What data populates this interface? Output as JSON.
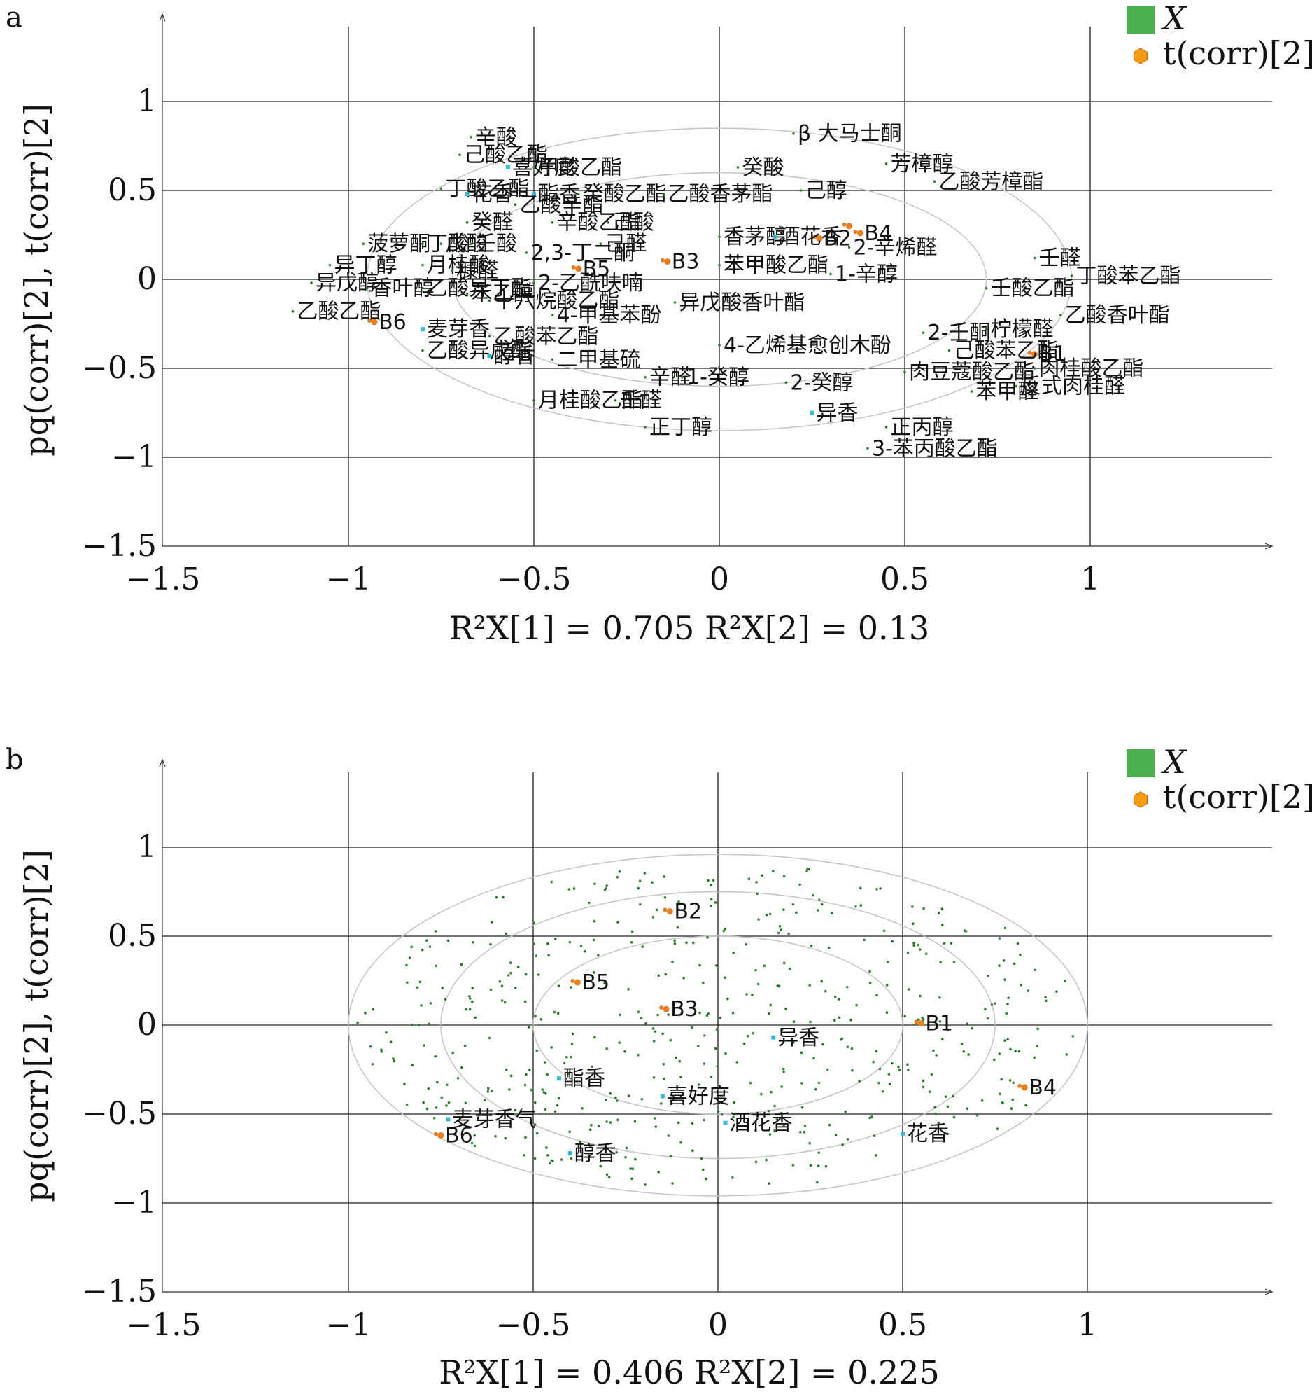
{
  "panels": [
    {
      "label": "a",
      "legend": [
        {
          "name": "X",
          "color": "#4caf50",
          "shape": "square"
        },
        {
          "name": "t(corr)[2]",
          "color": "#f39c12",
          "shape": "hexagon"
        }
      ],
      "ylabel": "pq(corr)[2], t(corr)[2]",
      "xlabel": "R2X[1] = 0.705 R2X[2] = 0.13"
    },
    {
      "label": "b",
      "legend": [
        {
          "name": "X",
          "color": "#4caf50",
          "shape": "square"
        },
        {
          "name": "t(corr)[2]",
          "color": "#f39c12",
          "shape": "hexagon"
        }
      ],
      "ylabel": "pq(corr)[2], t(corr)[2]",
      "xlabel": "R2X[1] = 0.406 R2X[2] = 0.225"
    }
  ],
  "chart_data": [
    {
      "type": "scatter",
      "panel": "a",
      "xlim": [
        -1.5,
        1.5
      ],
      "ylim": [
        -1.5,
        1.5
      ],
      "xticks": [
        "-1.5",
        "-1",
        "-0.5",
        "0",
        "0.5",
        "1"
      ],
      "yticks": [
        "1",
        "0.5",
        "0",
        "-0.5",
        "-1",
        "-1.5"
      ],
      "xlabel": "R2X[1] = 0.705 R2X[2] = 0.13",
      "ylabel": "pq(corr)[2], t(corr)[2]",
      "grid": true,
      "legend_position": "top-right",
      "ellipses": [
        [
          0.95,
          0.85
        ],
        [
          0.72,
          0.6
        ]
      ],
      "series": [
        {
          "name": "t(corr)[2]",
          "color": "#e67e22",
          "points": [
            {
              "label": "B3",
              "x": -0.14,
              "y": 0.1
            },
            {
              "label": "B5",
              "x": -0.38,
              "y": 0.06
            },
            {
              "label": "B4",
              "x": 0.38,
              "y": 0.26
            },
            {
              "label": "",
              "x": 0.35,
              "y": 0.3
            },
            {
              "label": "B2",
              "x": 0.27,
              "y": 0.23
            },
            {
              "label": "B6",
              "x": -0.93,
              "y": -0.24
            },
            {
              "label": "B1",
              "x": 0.85,
              "y": -0.42
            }
          ]
        },
        {
          "name": "X",
          "color": "#2e7d32",
          "points": [
            {
              "label": "辛酸",
              "x": -0.67,
              "y": 0.8
            },
            {
              "label": "己酸乙酯",
              "x": -0.7,
              "y": 0.7
            },
            {
              "label": "喜好度",
              "x": -0.57,
              "y": 0.63
            },
            {
              "label": "甲酸乙酯",
              "x": -0.5,
              "y": 0.63
            },
            {
              "label": "癸酸",
              "x": 0.05,
              "y": 0.63
            },
            {
              "label": "丁酸乙酯",
              "x": -0.75,
              "y": 0.51
            },
            {
              "label": "花香",
              "x": -0.68,
              "y": 0.48
            },
            {
              "label": "酯香",
              "x": -0.5,
              "y": 0.48
            },
            {
              "label": "癸酸乙酯",
              "x": -0.38,
              "y": 0.48
            },
            {
              "label": "乙酸香茅酯",
              "x": -0.15,
              "y": 0.48
            },
            {
              "label": "己醇",
              "x": 0.22,
              "y": 0.5
            },
            {
              "label": "乙酸辛酯",
              "x": -0.55,
              "y": 0.42
            },
            {
              "label": "癸醛",
              "x": -0.68,
              "y": 0.32
            },
            {
              "label": "辛酸乙酯",
              "x": -0.45,
              "y": 0.32
            },
            {
              "label": "己酸",
              "x": -0.3,
              "y": 0.32
            },
            {
              "label": "香茅醇",
              "x": 0.0,
              "y": 0.24
            },
            {
              "label": "酒花香",
              "x": 0.15,
              "y": 0.24
            },
            {
              "label": "β 大马士酮",
              "x": 0.2,
              "y": 0.82
            },
            {
              "label": "芳樟醇",
              "x": 0.45,
              "y": 0.65
            },
            {
              "label": "乙酸芳樟酯",
              "x": 0.58,
              "y": 0.55
            },
            {
              "label": "2-辛烯醛",
              "x": 0.35,
              "y": 0.18
            },
            {
              "label": "1-辛醇",
              "x": 0.3,
              "y": 0.03
            },
            {
              "label": "苯甲酸乙酯",
              "x": 0.0,
              "y": 0.08
            },
            {
              "label": "己醛",
              "x": -0.32,
              "y": 0.2
            },
            {
              "label": "菠萝酮",
              "x": -0.96,
              "y": 0.2
            },
            {
              "label": "丁酸",
              "x": -0.8,
              "y": 0.2
            },
            {
              "label": "戊酸",
              "x": -0.75,
              "y": 0.2
            },
            {
              "label": "壬酸",
              "x": -0.67,
              "y": 0.2
            },
            {
              "label": "2,3-丁二酮",
              "x": -0.52,
              "y": 0.15
            },
            {
              "label": "异丁醇",
              "x": -1.05,
              "y": 0.08
            },
            {
              "label": "月桂酸",
              "x": -0.8,
              "y": 0.08
            },
            {
              "label": "糠醛",
              "x": -0.72,
              "y": 0.05
            },
            {
              "label": "异戊醇",
              "x": -1.1,
              "y": -0.02
            },
            {
              "label": "香叶醇",
              "x": -0.95,
              "y": -0.05
            },
            {
              "label": "乙酸异丁酯",
              "x": -0.8,
              "y": -0.05
            },
            {
              "label": "苯乙醇",
              "x": -0.68,
              "y": -0.08
            },
            {
              "label": "2-乙酰呋喃",
              "x": -0.5,
              "y": -0.02
            },
            {
              "label": "十六烷酸乙酯",
              "x": -0.62,
              "y": -0.12
            },
            {
              "label": "乙酸乙酯",
              "x": -1.15,
              "y": -0.18
            },
            {
              "label": "麦芽香",
              "x": -0.8,
              "y": -0.28
            },
            {
              "label": "乙酸苯乙酯",
              "x": -0.62,
              "y": -0.32
            },
            {
              "label": "乙酸异戊酯",
              "x": -0.8,
              "y": -0.4
            },
            {
              "label": "醇香",
              "x": -0.62,
              "y": -0.43
            },
            {
              "label": "二甲基硫",
              "x": -0.45,
              "y": -0.45
            },
            {
              "label": "异戊酸香叶酯",
              "x": -0.12,
              "y": -0.13
            },
            {
              "label": "4-甲基苯酚",
              "x": -0.45,
              "y": -0.2
            },
            {
              "label": "4-乙烯基愈创木酚",
              "x": 0.0,
              "y": -0.37
            },
            {
              "label": "辛醛",
              "x": -0.2,
              "y": -0.55
            },
            {
              "label": "1-癸醇",
              "x": -0.1,
              "y": -0.55
            },
            {
              "label": "2-癸醇",
              "x": 0.18,
              "y": -0.58
            },
            {
              "label": "月桂酸乙酯",
              "x": -0.5,
              "y": -0.68
            },
            {
              "label": "壬醛",
              "x": -0.28,
              "y": -0.68
            },
            {
              "label": "正丁醇",
              "x": -0.2,
              "y": -0.83
            },
            {
              "label": "异香",
              "x": 0.25,
              "y": -0.75
            },
            {
              "label": "正丙醇",
              "x": 0.45,
              "y": -0.83
            },
            {
              "label": "3-苯丙酸乙酯",
              "x": 0.4,
              "y": -0.95
            },
            {
              "label": "壬醛",
              "x": 0.85,
              "y": 0.12
            },
            {
              "label": "丁酸苯乙酯",
              "x": 0.95,
              "y": 0.02
            },
            {
              "label": "壬酸乙酯",
              "x": 0.72,
              "y": -0.05
            },
            {
              "label": "乙酸香叶酯",
              "x": 0.92,
              "y": -0.2
            },
            {
              "label": "2-壬酮",
              "x": 0.55,
              "y": -0.3
            },
            {
              "label": "柠檬醛",
              "x": 0.72,
              "y": -0.28
            },
            {
              "label": "己酸苯乙酯",
              "x": 0.62,
              "y": -0.4
            },
            {
              "label": "肉豆蔻酸乙酯",
              "x": 0.5,
              "y": -0.52
            },
            {
              "label": "肉桂酸乙酯",
              "x": 0.85,
              "y": -0.5
            },
            {
              "label": "苯甲醛",
              "x": 0.68,
              "y": -0.63
            },
            {
              "label": "反式肉桂醛",
              "x": 0.8,
              "y": -0.6
            }
          ]
        }
      ]
    },
    {
      "type": "scatter",
      "panel": "b",
      "xlim": [
        -1.5,
        1.5
      ],
      "ylim": [
        -1.5,
        1.5
      ],
      "xticks": [
        "-1.5",
        "-1",
        "-0.5",
        "0",
        "0.5",
        "1"
      ],
      "yticks": [
        "1",
        "0.5",
        "0",
        "-0.5",
        "-1",
        "-1.5"
      ],
      "xlabel": "R2X[1] = 0.406 R2X[2] = 0.225",
      "ylabel": "pq(corr)[2], t(corr)[2]",
      "grid": true,
      "legend_position": "top-right",
      "ellipses": [
        [
          1.0,
          0.96
        ],
        [
          0.75,
          0.75
        ],
        [
          0.5,
          0.5
        ]
      ],
      "series": [
        {
          "name": "t(corr)[2]",
          "color": "#e67e22",
          "points": [
            {
              "label": "B2",
              "x": -0.13,
              "y": 0.64
            },
            {
              "label": "B5",
              "x": -0.38,
              "y": 0.24
            },
            {
              "label": "B3",
              "x": -0.14,
              "y": 0.09
            },
            {
              "label": "B1",
              "x": 0.55,
              "y": 0.01
            },
            {
              "label": "B4",
              "x": 0.83,
              "y": -0.35
            },
            {
              "label": "B6",
              "x": -0.75,
              "y": -0.62
            }
          ]
        },
        {
          "name": "X",
          "color": "#2e7d32",
          "points": [
            {
              "label": "异香",
              "x": 0.15,
              "y": -0.07
            },
            {
              "label": "酯香",
              "x": -0.43,
              "y": -0.3
            },
            {
              "label": "喜好度",
              "x": -0.15,
              "y": -0.4
            },
            {
              "label": "酒花香",
              "x": 0.02,
              "y": -0.55
            },
            {
              "label": "花香",
              "x": 0.5,
              "y": -0.61
            },
            {
              "label": "麦芽香气",
              "x": -0.73,
              "y": -0.53
            },
            {
              "label": "醇香",
              "x": -0.4,
              "y": -0.72
            }
          ]
        }
      ]
    }
  ]
}
